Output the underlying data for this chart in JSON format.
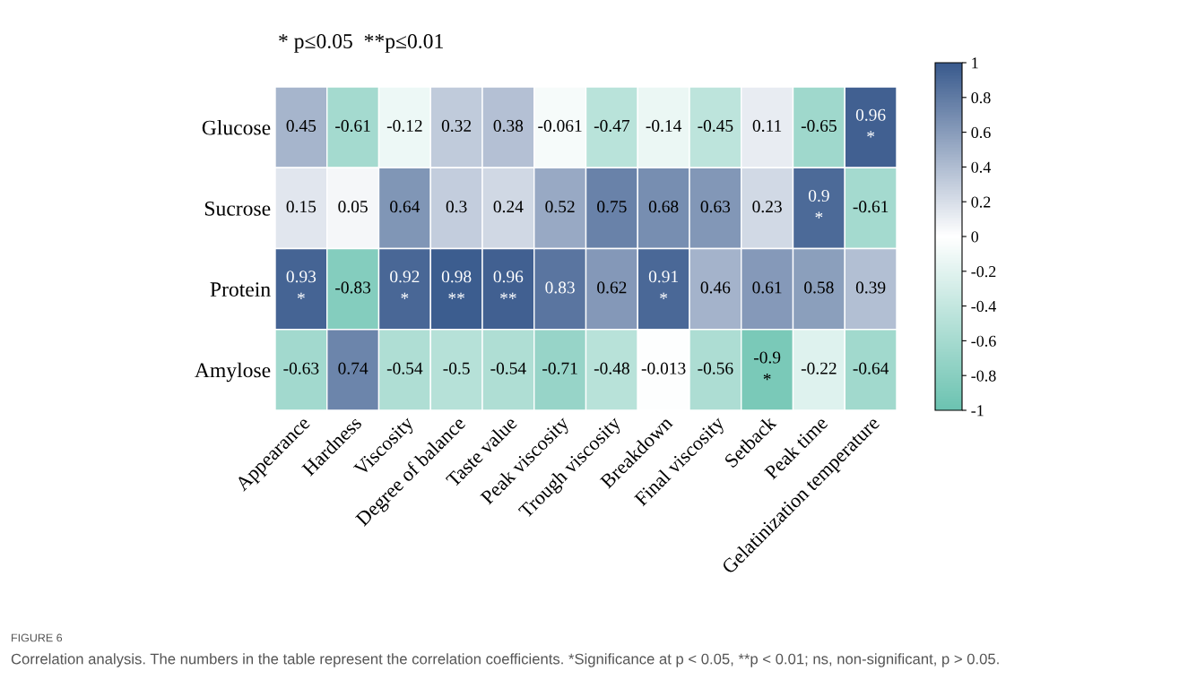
{
  "chart_data": {
    "type": "heatmap",
    "categories": [
      "Appearance",
      "Hardness",
      "Viscosity",
      "Degree of balance",
      "Taste value",
      "Peak viscosity",
      "Trough viscosity",
      "Breakdown",
      "Final viscosity",
      "Setback",
      "Peak time",
      "Gelatinization temperature"
    ],
    "y_categories": [
      "Glucose",
      "Sucrose",
      "Protein",
      "Amylose"
    ],
    "cells": [
      [
        0.45,
        -0.61,
        -0.12,
        0.32,
        0.38,
        -0.061,
        -0.47,
        -0.14,
        -0.45,
        0.11,
        -0.65,
        0.96
      ],
      [
        0.15,
        0.05,
        0.64,
        0.3,
        0.24,
        0.52,
        0.75,
        0.68,
        0.63,
        0.23,
        0.9,
        -0.61
      ],
      [
        0.93,
        -0.83,
        0.92,
        0.98,
        0.96,
        0.83,
        0.62,
        0.91,
        0.46,
        0.61,
        0.58,
        0.39
      ],
      [
        -0.63,
        0.74,
        -0.54,
        -0.5,
        -0.54,
        -0.71,
        -0.48,
        -0.013,
        -0.56,
        -0.9,
        -0.22,
        -0.64
      ]
    ],
    "cell_labels": [
      [
        "0.45",
        "-0.61",
        "-0.12",
        "0.32",
        "0.38",
        "-0.061",
        "-0.47",
        "-0.14",
        "-0.45",
        "0.11",
        "-0.65",
        "0.96\n*"
      ],
      [
        "0.15",
        "0.05",
        "0.64",
        "0.3",
        "0.24",
        "0.52",
        "0.75",
        "0.68",
        "0.63",
        "0.23",
        "0.9\n*",
        "-0.61"
      ],
      [
        "0.93\n*",
        "-0.83",
        "0.92\n*",
        "0.98\n**",
        "0.96\n**",
        "0.83",
        "0.62",
        "0.91\n*",
        "0.46",
        "0.61",
        "0.58",
        "0.39"
      ],
      [
        "-0.63",
        "0.74",
        "-0.54",
        "-0.5",
        "-0.54",
        "-0.71",
        "-0.48",
        "-0.013",
        "-0.56",
        "-0.9\n*",
        "-0.22",
        "-0.64"
      ]
    ],
    "colors": [
      "#6cc3b1",
      "#ffffff",
      "#395a8d"
    ],
    "clim": [
      -1,
      1
    ],
    "cticks": [
      -1,
      -0.8,
      -0.6,
      -0.4,
      -0.2,
      0,
      0.2,
      0.4,
      0.6,
      0.8,
      1
    ],
    "annotations": [
      "* p≤0.05  **p≤0.01",
      "FIGURE 6",
      "Correlation analysis. The numbers in the table represent the correlation coefficients. *Significance at p < 0.05, **p < 0.01; ns, non-significant, p > 0.05."
    ]
  }
}
